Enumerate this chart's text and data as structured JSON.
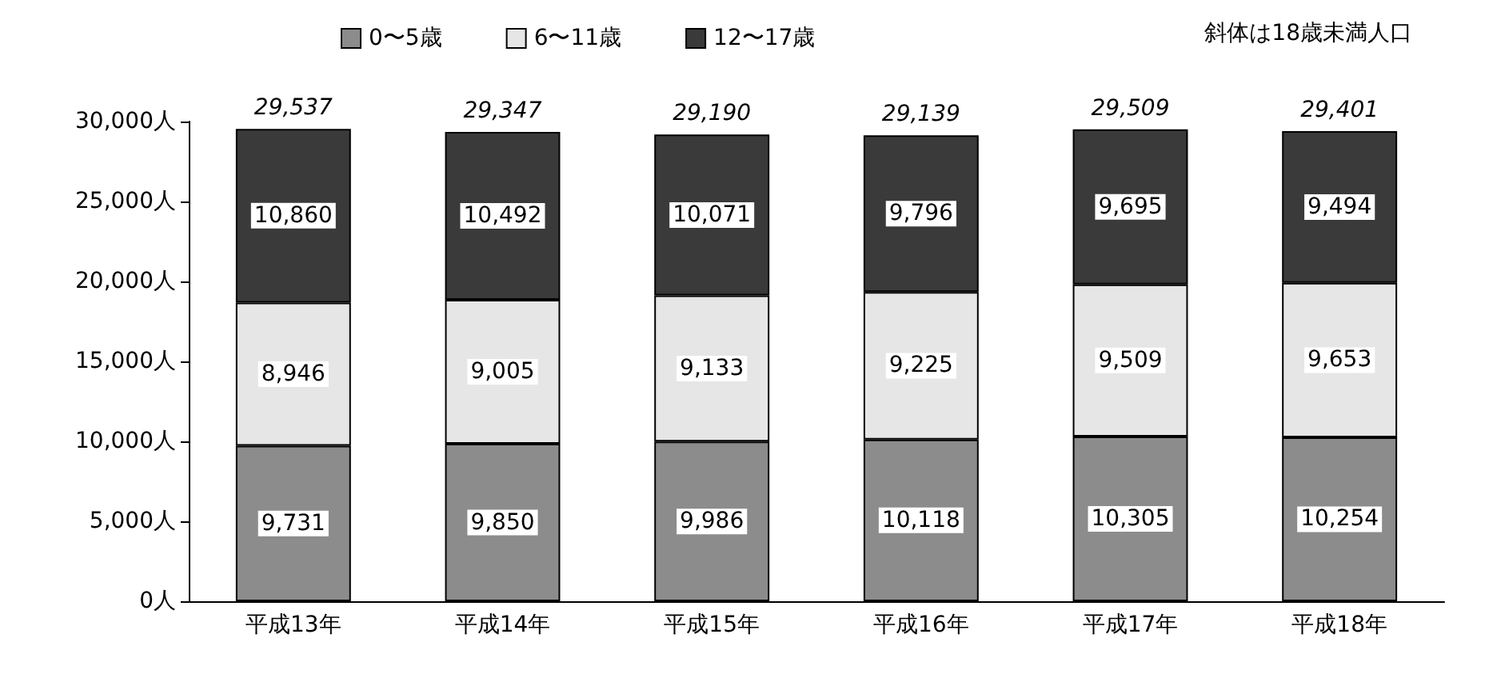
{
  "chart_data": {
    "type": "bar",
    "stacked": true,
    "categories": [
      "平成13年",
      "平成14年",
      "平成15年",
      "平成16年",
      "平成17年",
      "平成18年"
    ],
    "series": [
      {
        "name": "0〜5歳",
        "color": "#8c8c8c",
        "values": [
          9731,
          9850,
          9986,
          10118,
          10305,
          10254
        ],
        "value_labels": [
          "9,731",
          "9,850",
          "9,986",
          "10,118",
          "10,305",
          "10,254"
        ]
      },
      {
        "name": "6〜11歳",
        "color": "#e6e6e6",
        "values": [
          8946,
          9005,
          9133,
          9225,
          9509,
          9653
        ],
        "value_labels": [
          "8,946",
          "9,005",
          "9,133",
          "9,225",
          "9,509",
          "9,653"
        ]
      },
      {
        "name": "12〜17歳",
        "color": "#3a3a3a",
        "values": [
          10860,
          10492,
          10071,
          9796,
          9695,
          9494
        ],
        "value_labels": [
          "10,860",
          "10,492",
          "10,071",
          "9,796",
          "9,695",
          "9,494"
        ]
      }
    ],
    "totals": [
      "29,537",
      "29,347",
      "29,190",
      "29,139",
      "29,509",
      "29,401"
    ],
    "ylim": [
      0,
      30000
    ],
    "yticks": [
      {
        "value": 0,
        "label": "0人"
      },
      {
        "value": 5000,
        "label": "5,000人"
      },
      {
        "value": 10000,
        "label": "10,000人"
      },
      {
        "value": 15000,
        "label": "15,000人"
      },
      {
        "value": 20000,
        "label": "20,000人"
      },
      {
        "value": 25000,
        "label": "25,000人"
      },
      {
        "value": 30000,
        "label": "30,000人"
      }
    ],
    "grid": false,
    "legend": "top",
    "annotations": [
      "斜体は18歳未満人口"
    ]
  }
}
